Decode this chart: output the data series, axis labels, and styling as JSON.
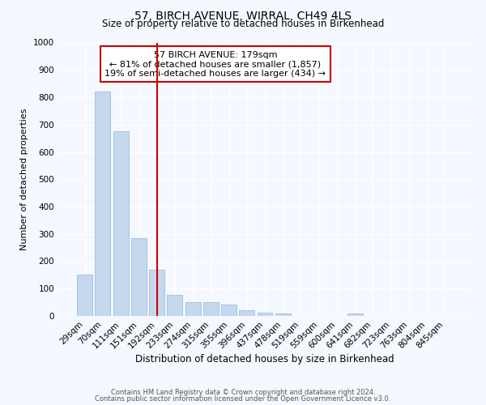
{
  "title": "57, BIRCH AVENUE, WIRRAL, CH49 4LS",
  "subtitle": "Size of property relative to detached houses in Birkenhead",
  "xlabel": "Distribution of detached houses by size in Birkenhead",
  "ylabel": "Number of detached properties",
  "categories": [
    "29sqm",
    "70sqm",
    "111sqm",
    "151sqm",
    "192sqm",
    "233sqm",
    "274sqm",
    "315sqm",
    "355sqm",
    "396sqm",
    "437sqm",
    "478sqm",
    "519sqm",
    "559sqm",
    "600sqm",
    "641sqm",
    "682sqm",
    "723sqm",
    "763sqm",
    "804sqm",
    "845sqm"
  ],
  "values": [
    150,
    820,
    675,
    285,
    170,
    78,
    50,
    50,
    42,
    20,
    12,
    10,
    0,
    0,
    0,
    10,
    0,
    0,
    0,
    0,
    0
  ],
  "bar_color": "#c5d8f0",
  "bar_edgecolor": "#a0bedd",
  "vline_x_index": 4,
  "vline_color": "#cc0000",
  "annotation_text": "57 BIRCH AVENUE: 179sqm\n← 81% of detached houses are smaller (1,857)\n19% of semi-detached houses are larger (434) →",
  "annotation_box_facecolor": "#ffffff",
  "annotation_box_edgecolor": "#cc0000",
  "ylim": [
    0,
    1000
  ],
  "yticks": [
    0,
    100,
    200,
    300,
    400,
    500,
    600,
    700,
    800,
    900,
    1000
  ],
  "footer_line1": "Contains HM Land Registry data © Crown copyright and database right 2024.",
  "footer_line2": "Contains public sector information licensed under the Open Government Licence v3.0.",
  "bg_color": "#f5f8ff",
  "plot_bg_color": "#f5f8ff",
  "title_fontsize": 10,
  "subtitle_fontsize": 8.5,
  "xlabel_fontsize": 8.5,
  "ylabel_fontsize": 8.0,
  "tick_fontsize": 7.5,
  "annot_fontsize": 8.0,
  "footer_fontsize": 6.0
}
